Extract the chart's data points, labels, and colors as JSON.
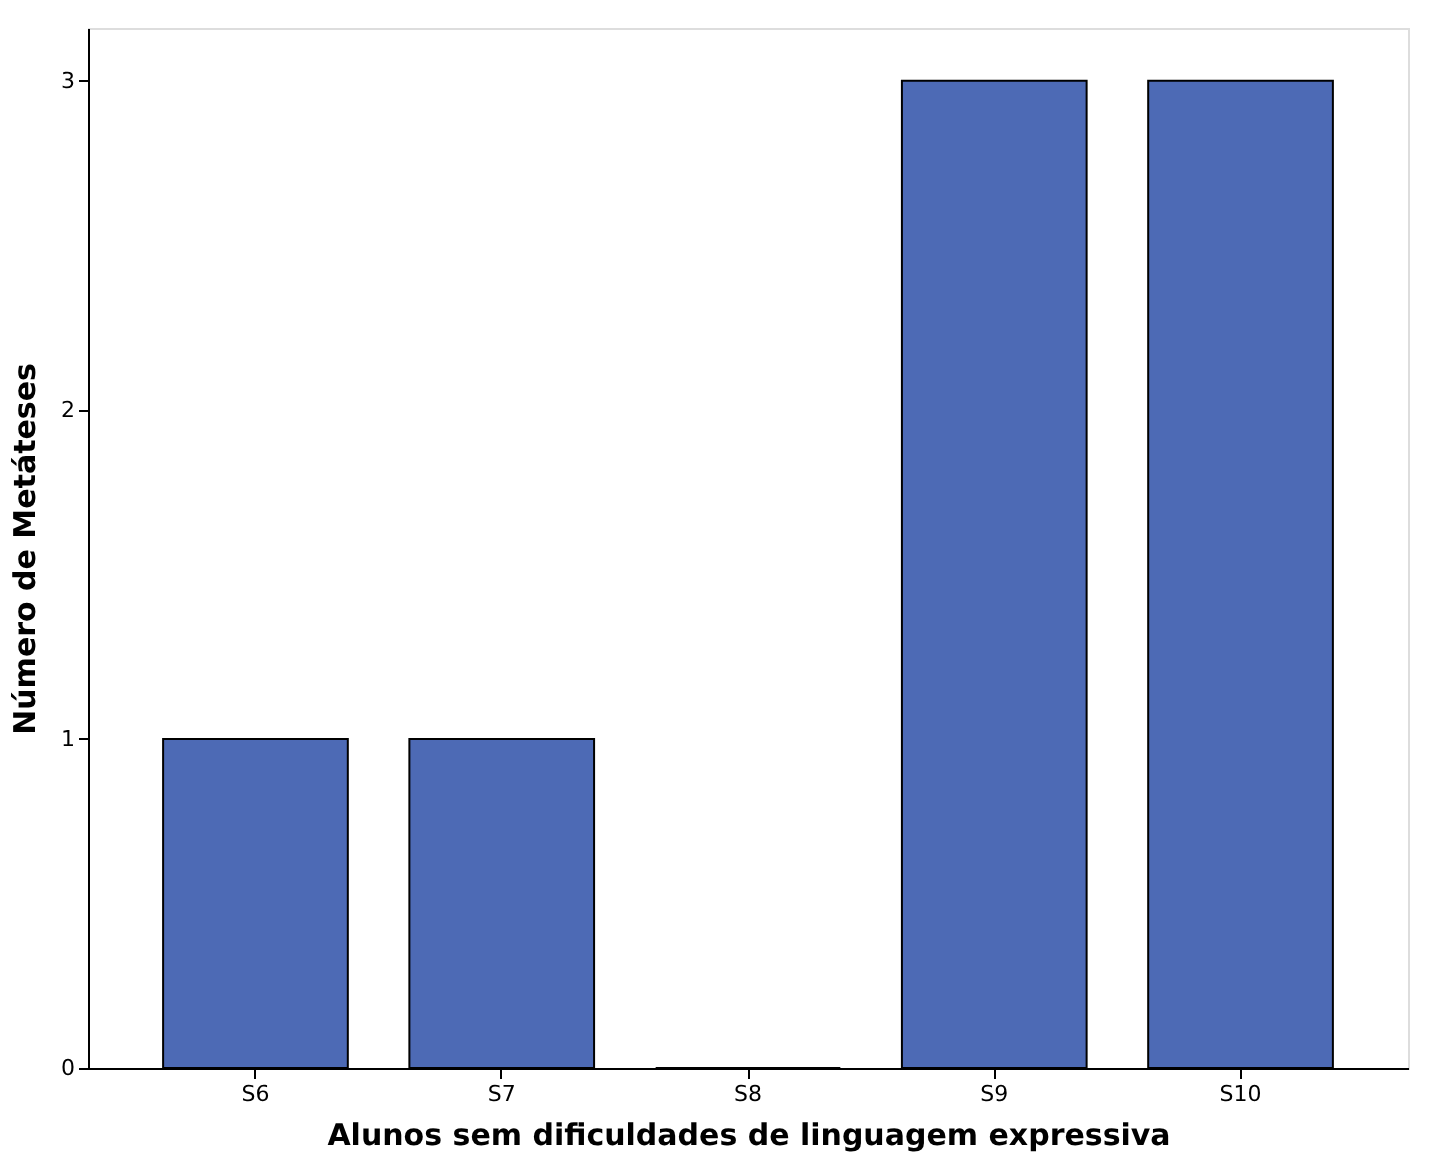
{
  "chart_data": {
    "type": "bar",
    "xlabel": "Alunos sem dificuldades de linguagem expressiva",
    "ylabel": "Número de Metáteses",
    "categories": [
      "S6",
      "S7",
      "S8",
      "S9",
      "S10"
    ],
    "values": [
      1,
      1,
      0,
      3,
      3
    ],
    "color": "#4d6ab5",
    "ylim": [
      0,
      3.16
    ],
    "yticks": [
      0,
      1,
      2,
      3
    ],
    "grid": false
  }
}
